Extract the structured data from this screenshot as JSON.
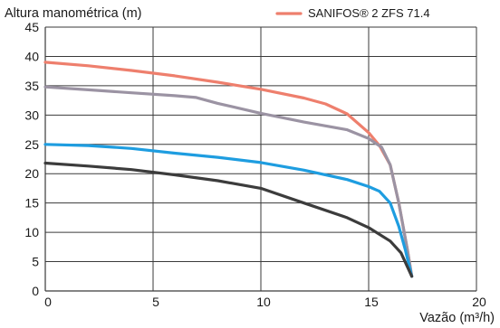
{
  "chart_data": {
    "type": "line",
    "ylabel": "Altura manométrica (m)",
    "xlabel": "Vazão (m³/h)",
    "xlim": [
      0,
      20
    ],
    "ylim": [
      0,
      45
    ],
    "xticks": [
      "0",
      "5",
      "10",
      "15",
      "20"
    ],
    "yticks": [
      "0",
      "5",
      "10",
      "15",
      "20",
      "25",
      "30",
      "35",
      "40",
      "45"
    ],
    "grid": true,
    "legend": {
      "position": "top-right",
      "entries": [
        "SANIFOS® 2 ZFS 71.4"
      ]
    },
    "series": [
      {
        "name": "SANIFOS® 2 ZFS 71.4",
        "color": "#ee7f6d",
        "x": [
          0,
          2,
          4,
          6,
          8,
          10,
          12,
          13,
          14,
          15,
          15.5,
          16,
          16.4,
          16.8,
          17
        ],
        "y": [
          39,
          38.4,
          37.6,
          36.7,
          35.6,
          34.4,
          32.9,
          31.9,
          30.2,
          27.0,
          24.8,
          21.5,
          15.0,
          7.0,
          2.5
        ]
      },
      {
        "color": "#9b93a3",
        "x": [
          0,
          2,
          4,
          6,
          7,
          8,
          10,
          12,
          14,
          15,
          15.6,
          16,
          16.4,
          16.8,
          17
        ],
        "y": [
          34.8,
          34.3,
          33.8,
          33.3,
          33.0,
          32.0,
          30.3,
          28.8,
          27.5,
          26.0,
          24.5,
          21.5,
          15.0,
          7.0,
          2.5
        ]
      },
      {
        "color": "#1e9de0",
        "x": [
          0,
          2,
          4,
          6,
          8,
          10,
          12,
          14,
          15,
          15.5,
          16,
          16.4,
          16.7,
          17
        ],
        "y": [
          25,
          24.8,
          24.3,
          23.5,
          22.8,
          21.9,
          20.6,
          19.0,
          17.8,
          17.0,
          15.0,
          11.0,
          7.0,
          2.5
        ]
      },
      {
        "color": "#3c3c3c",
        "x": [
          0,
          2,
          4,
          6,
          8,
          10,
          12,
          14,
          15,
          16,
          16.5,
          17
        ],
        "y": [
          21.8,
          21.3,
          20.7,
          19.8,
          18.8,
          17.5,
          15.0,
          12.5,
          10.8,
          8.5,
          6.5,
          2.5
        ]
      }
    ]
  }
}
